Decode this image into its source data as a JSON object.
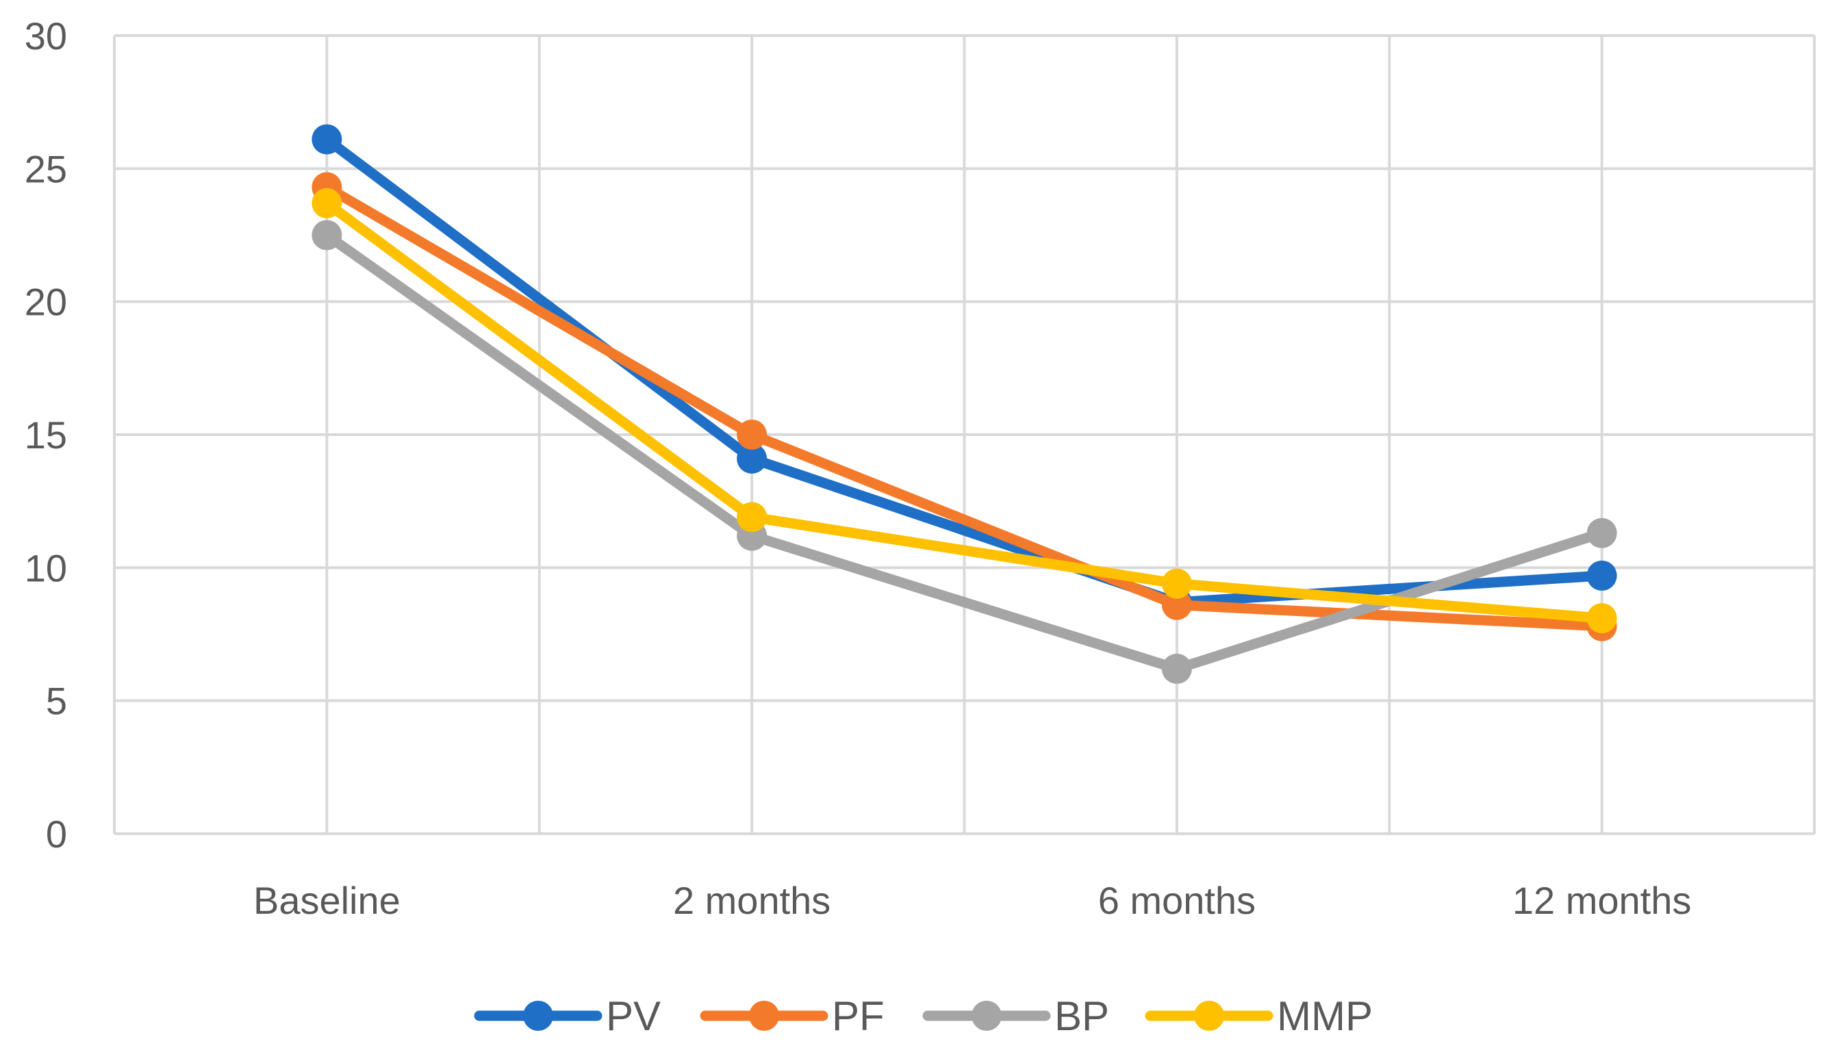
{
  "chart_data": {
    "type": "line",
    "title": "",
    "xlabel": "",
    "ylabel": "",
    "categories": [
      "Baseline",
      "2 months",
      "6 months",
      "12 months"
    ],
    "ylim": [
      0,
      30
    ],
    "yticks": [
      0,
      5,
      10,
      15,
      20,
      25,
      30
    ],
    "grid": true,
    "legend_position": "bottom",
    "series": [
      {
        "name": "PV",
        "color": "#1f6fc6",
        "values": [
          26.1,
          14.1,
          8.7,
          9.7
        ]
      },
      {
        "name": "PF",
        "color": "#f47a2b",
        "values": [
          24.3,
          15.0,
          8.6,
          7.8
        ]
      },
      {
        "name": "BP",
        "color": "#a5a5a5",
        "values": [
          22.5,
          11.2,
          6.2,
          11.3
        ]
      },
      {
        "name": "MMP",
        "color": "#ffc000",
        "values": [
          23.7,
          11.9,
          9.4,
          8.1
        ]
      }
    ]
  }
}
